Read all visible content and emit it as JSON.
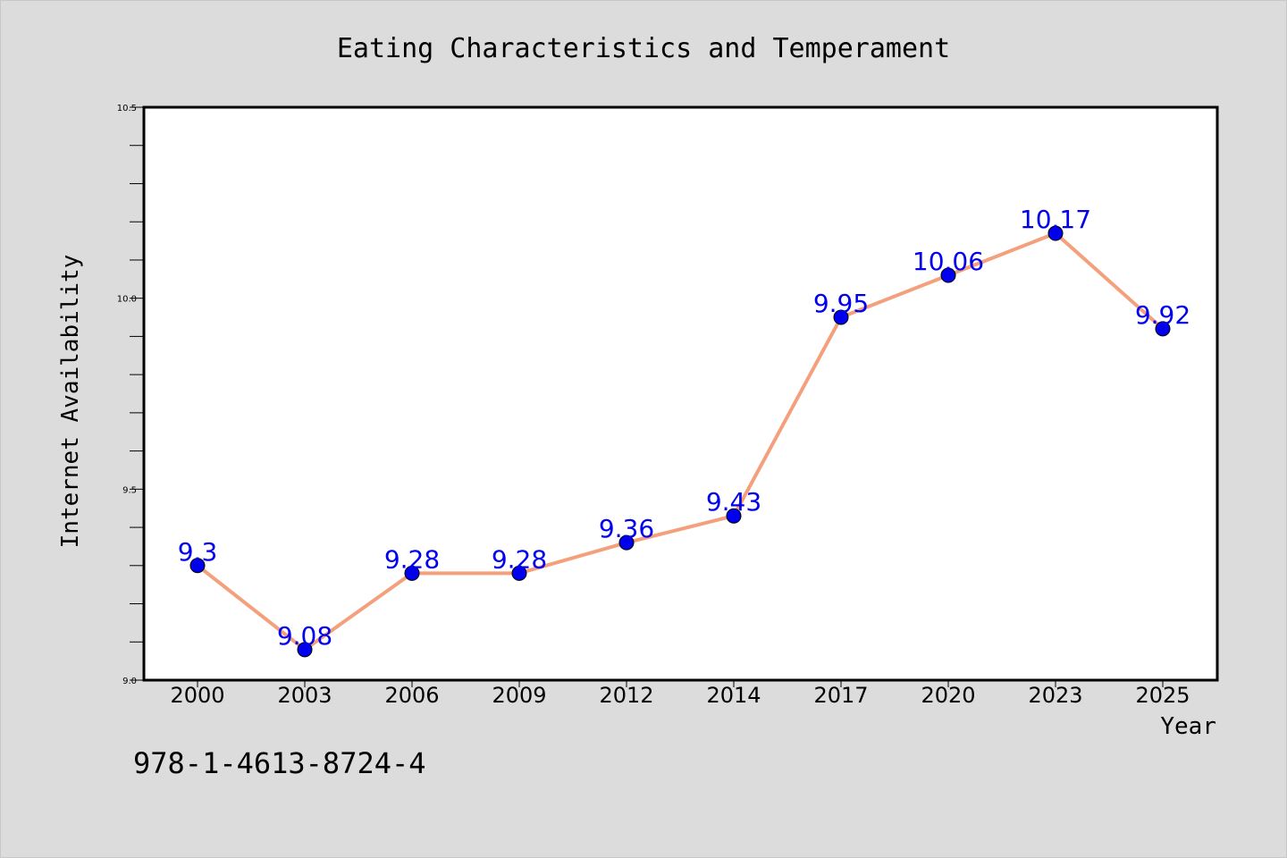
{
  "chart_data": {
    "type": "line",
    "title": "Eating Characteristics and Temperament",
    "xlabel": "Year",
    "ylabel": "Internet Availability",
    "categories": [
      "2000",
      "2003",
      "2006",
      "2009",
      "2012",
      "2014",
      "2017",
      "2020",
      "2023",
      "2025"
    ],
    "series": [
      {
        "values": [
          9.3,
          9.08,
          9.28,
          9.28,
          9.36,
          9.43,
          9.95,
          10.06,
          10.17,
          9.92
        ],
        "line_color": "#f4a07c",
        "marker_color": "#0000ee",
        "label_color": "#0000ee"
      }
    ],
    "data_labels": [
      "9.3",
      "9.08",
      "9.28",
      "9.28",
      "9.36",
      "9.43",
      "9.95",
      "10.06",
      "10.17",
      "9.92"
    ],
    "ylim": [
      9.0,
      10.5
    ],
    "yticks_labeled": [
      "9.0",
      "9.5",
      "10.0",
      "10.5"
    ],
    "yticks_labeled_values": [
      9.0,
      9.5,
      10.0,
      10.5
    ],
    "ytick_minor_step": 0.1,
    "grid": false,
    "legend": "none"
  },
  "footnote": "978-1-4613-8724-4",
  "colors": {
    "background": "#dcdcdc",
    "plot_background": "#ffffff",
    "axis": "#000000"
  }
}
